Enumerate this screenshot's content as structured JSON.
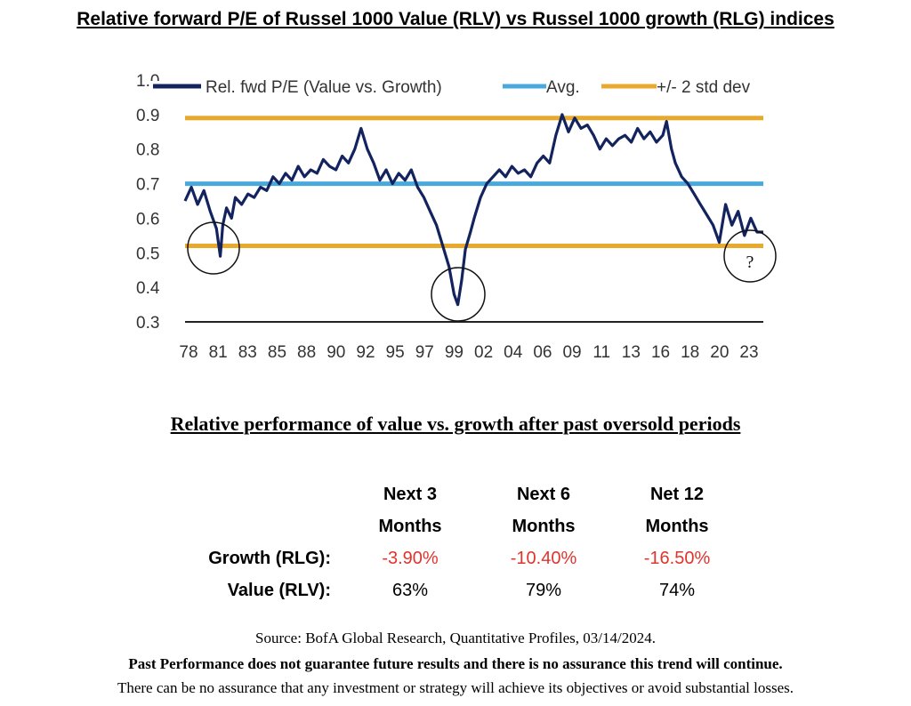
{
  "title": "Relative forward P/E of Russel 1000 Value (RLV) vs Russel 1000 growth (RLG) indices",
  "chart_data": {
    "type": "line",
    "ylim": [
      0.3,
      1.0
    ],
    "y_ticks": [
      "1.0",
      "0.9",
      "0.8",
      "0.7",
      "0.6",
      "0.5",
      "0.4",
      "0.3"
    ],
    "x_ticks": [
      "78",
      "81",
      "83",
      "85",
      "88",
      "90",
      "92",
      "95",
      "97",
      "99",
      "02",
      "04",
      "06",
      "09",
      "11",
      "13",
      "16",
      "18",
      "20",
      "23"
    ],
    "xlim": [
      1978,
      2024
    ],
    "legend_position": "top",
    "colors": {
      "series": "#13235e",
      "avg": "#4aa9dc",
      "band": "#e8a92f",
      "axis": "#222222"
    },
    "series": [
      {
        "name": "Rel. fwd P/E (Value vs. Growth)",
        "x": [
          1978.0,
          1978.5,
          1979.0,
          1979.5,
          1980.0,
          1980.5,
          1980.8,
          1981.0,
          1981.3,
          1981.7,
          1982.0,
          1982.5,
          1983.0,
          1983.5,
          1984.0,
          1984.5,
          1985.0,
          1985.5,
          1986.0,
          1986.5,
          1987.0,
          1987.5,
          1988.0,
          1988.5,
          1989.0,
          1989.5,
          1990.0,
          1990.5,
          1991.0,
          1991.5,
          1992.0,
          1992.5,
          1993.0,
          1993.5,
          1994.0,
          1994.5,
          1995.0,
          1995.5,
          1996.0,
          1996.5,
          1997.0,
          1997.5,
          1998.0,
          1998.5,
          1999.0,
          1999.4,
          1999.7,
          2000.0,
          2000.3,
          2000.7,
          2001.0,
          2001.5,
          2002.0,
          2002.5,
          2003.0,
          2003.5,
          2004.0,
          2004.5,
          2005.0,
          2005.5,
          2006.0,
          2006.5,
          2007.0,
          2007.5,
          2008.0,
          2008.5,
          2009.0,
          2009.5,
          2010.0,
          2010.5,
          2011.0,
          2011.5,
          2012.0,
          2012.5,
          2013.0,
          2013.5,
          2014.0,
          2014.5,
          2015.0,
          2015.5,
          2016.0,
          2016.3,
          2016.7,
          2017.0,
          2017.5,
          2018.0,
          2018.5,
          2019.0,
          2019.5,
          2020.0,
          2020.5,
          2021.0,
          2021.5,
          2022.0,
          2022.5,
          2023.0,
          2023.5,
          2024.0
        ],
        "values": [
          0.65,
          0.69,
          0.64,
          0.68,
          0.62,
          0.57,
          0.49,
          0.58,
          0.63,
          0.6,
          0.66,
          0.64,
          0.67,
          0.66,
          0.69,
          0.68,
          0.72,
          0.7,
          0.73,
          0.71,
          0.75,
          0.72,
          0.74,
          0.73,
          0.77,
          0.75,
          0.74,
          0.78,
          0.76,
          0.8,
          0.86,
          0.8,
          0.76,
          0.71,
          0.74,
          0.7,
          0.73,
          0.71,
          0.74,
          0.69,
          0.66,
          0.62,
          0.58,
          0.52,
          0.46,
          0.38,
          0.35,
          0.42,
          0.51,
          0.56,
          0.6,
          0.66,
          0.7,
          0.72,
          0.74,
          0.72,
          0.75,
          0.73,
          0.74,
          0.72,
          0.76,
          0.78,
          0.76,
          0.84,
          0.9,
          0.85,
          0.89,
          0.86,
          0.87,
          0.84,
          0.8,
          0.83,
          0.81,
          0.83,
          0.84,
          0.82,
          0.86,
          0.83,
          0.85,
          0.82,
          0.84,
          0.88,
          0.8,
          0.76,
          0.72,
          0.7,
          0.67,
          0.64,
          0.61,
          0.58,
          0.53,
          0.64,
          0.58,
          0.62,
          0.55,
          0.6,
          0.56,
          0.56
        ]
      },
      {
        "name": "Avg.",
        "values": [
          0.7
        ]
      },
      {
        "name": "+/- 2 std dev",
        "values": [
          0.52,
          0.89
        ]
      }
    ],
    "annotations": [
      "?"
    ]
  },
  "subtitle": "Relative performance of value vs. growth after past oversold periods",
  "table": {
    "headers": [
      [
        "Next 3",
        "Months"
      ],
      [
        "Next 6",
        "Months"
      ],
      [
        "Net 12",
        "Months"
      ]
    ],
    "rows": [
      {
        "label": "Growth (RLG):",
        "values": [
          "-3.90%",
          "-10.40%",
          "-16.50%"
        ]
      },
      {
        "label": "Value (RLV):",
        "values": [
          "63%",
          "79%",
          "74%"
        ]
      }
    ]
  },
  "footer": {
    "source": "Source: BofA Global Research, Quantitative Profiles, 03/14/2024.",
    "disclaimer_bold": "Past Performance does not guarantee future results and there is no assurance this trend will continue.",
    "disclaimer": "There can be no assurance that any investment or strategy will achieve its objectives or avoid substantial losses."
  }
}
